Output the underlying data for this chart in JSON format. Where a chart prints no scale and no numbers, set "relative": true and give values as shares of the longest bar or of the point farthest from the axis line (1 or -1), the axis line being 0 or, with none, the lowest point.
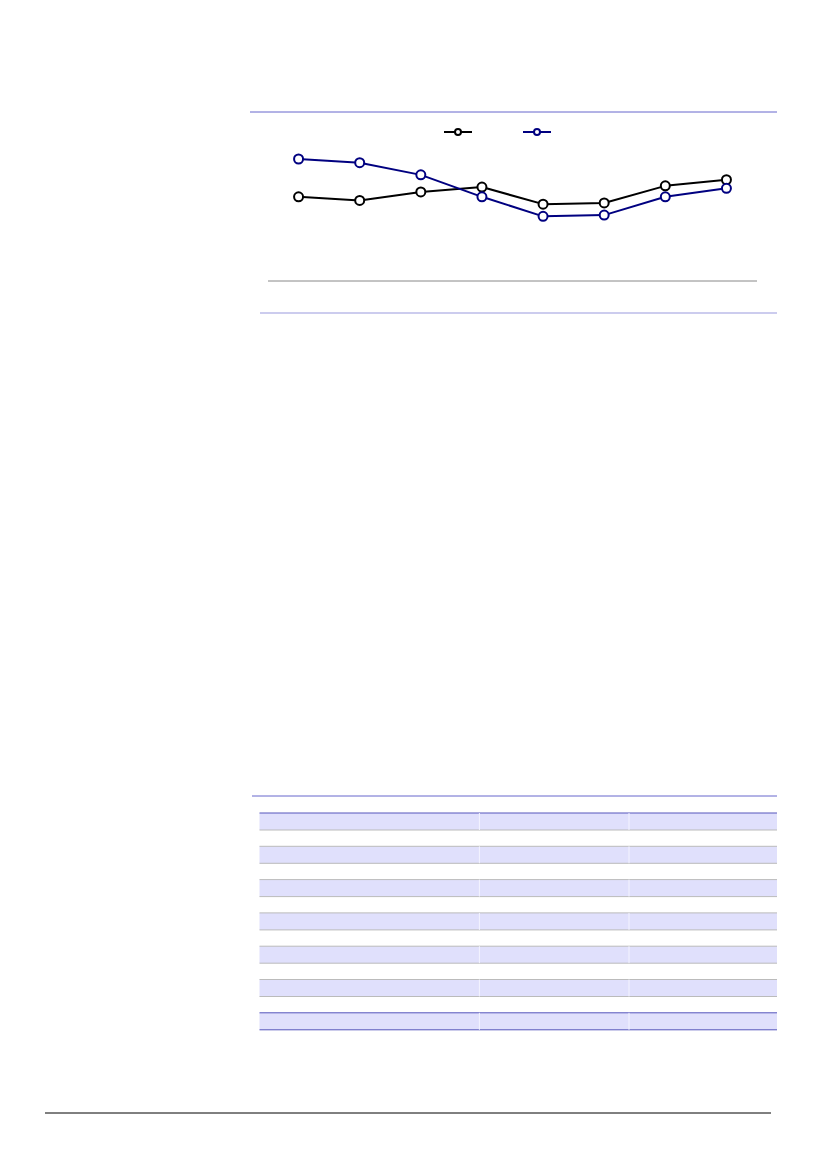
{
  "chart_data": {
    "type": "line",
    "categories": [
      null,
      null,
      null,
      null,
      null,
      null,
      null,
      null
    ],
    "relative": true,
    "series": [
      {
        "color": "#000000",
        "values": [
          0.69,
          0.66,
          0.73,
          0.77,
          0.63,
          0.64,
          0.78,
          0.83
        ]
      },
      {
        "color": "#000080",
        "values": [
          1,
          0.97,
          0.87,
          0.69,
          0.53,
          0.54,
          0.69,
          0.76
        ]
      }
    ],
    "marker": "circle"
  }
}
